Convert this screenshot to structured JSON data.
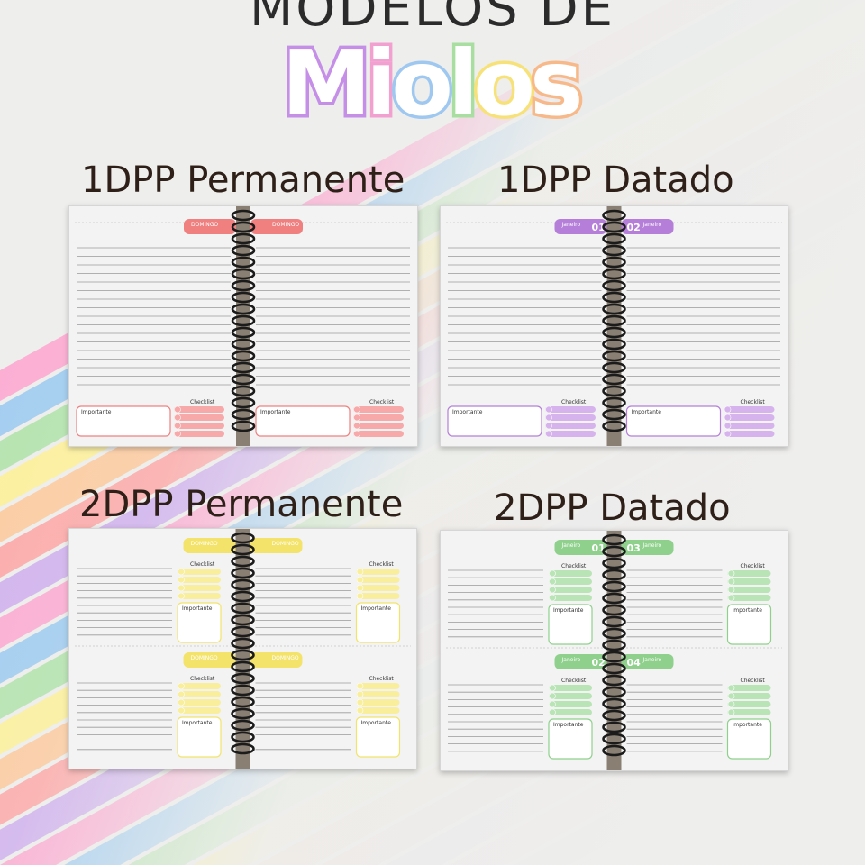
{
  "header": {
    "title": "MODELOS DE",
    "script_letters": [
      "M",
      "i",
      "o",
      "l",
      "o",
      "s"
    ],
    "script_colors": [
      "#c58fe8",
      "#f2a0cf",
      "#9fc8f0",
      "#a8dea0",
      "#f7e27a",
      "#f7b98a"
    ]
  },
  "background": {
    "stripe_colors": [
      "#ff9ccc",
      "#8ec4f2",
      "#a6e1a0",
      "#fff08a",
      "#ffc38f",
      "#ff9a9a",
      "#c9a3ef"
    ]
  },
  "templates": [
    {
      "label": "1DPP Permanente",
      "accent": "#f08080",
      "accent_light": "#f7a8a8",
      "layout": "1dpp",
      "important_label": "Importante",
      "checklist_label": "Checklist",
      "tab_texts": [
        "DOMINGO",
        "DOMINGO"
      ],
      "tab_numbers": []
    },
    {
      "label": "1DPP Datado",
      "accent": "#b57fd9",
      "accent_light": "#d6b3ec",
      "layout": "1dpp",
      "important_label": "Importante",
      "checklist_label": "Checklist",
      "tab_texts": [
        "Janeiro",
        "Janeiro"
      ],
      "tab_numbers": [
        "01",
        "02"
      ]
    },
    {
      "label": "2DPP Permanente",
      "accent": "#f3e36b",
      "accent_light": "#f8ee9c",
      "layout": "2dpp",
      "important_label": "Importante",
      "checklist_label": "Checklist",
      "tab_texts": [
        "DOMINGO",
        "DOMINGO",
        "DOMINGO",
        "DOMINGO"
      ],
      "tab_numbers": []
    },
    {
      "label": "2DPP Datado",
      "accent": "#8fd18c",
      "accent_light": "#b9e4b6",
      "layout": "2dpp",
      "important_label": "Importante",
      "checklist_label": "Checklist",
      "tab_texts": [
        "Janeiro",
        "Janeiro",
        "Janeiro",
        "Janeiro"
      ],
      "tab_numbers": [
        "01",
        "03",
        "02",
        "04"
      ]
    }
  ]
}
